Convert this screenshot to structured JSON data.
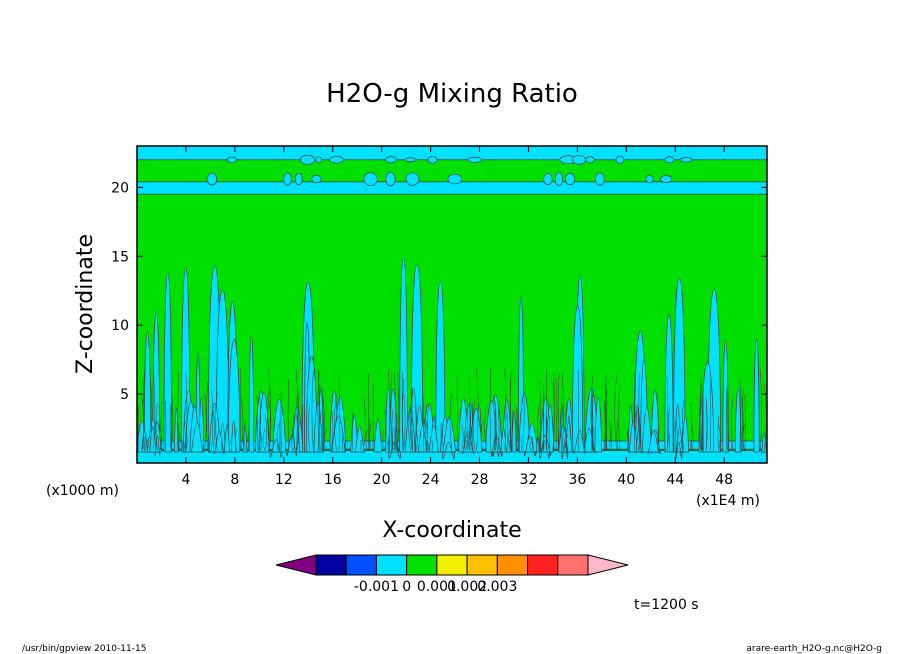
{
  "chart_data": {
    "type": "heatmap",
    "title": "H2O-g Mixing Ratio",
    "xlabel": "X-coordinate",
    "ylabel": "Z-coordinate",
    "x_unit_label": "(x1000 m)",
    "x_scale_label": "(x1E4 m)",
    "xlim": [
      0,
      51.5
    ],
    "ylim": [
      0,
      23
    ],
    "x_ticks": [
      4,
      8,
      12,
      16,
      20,
      24,
      28,
      32,
      36,
      40,
      44,
      48
    ],
    "y_ticks": [
      5,
      10,
      15,
      20
    ],
    "colorbar": {
      "colors": [
        "#800080",
        "#0000a0",
        "#0050ff",
        "#00e0ff",
        "#00e000",
        "#f0f000",
        "#ffc000",
        "#ff9000",
        "#ff2020",
        "#ff7070",
        "#ffb8c8"
      ],
      "tick_labels": [
        "-0.001",
        "0",
        "0.001",
        "0.002",
        "0.003"
      ]
    },
    "field_colors": {
      "background": "#00e000",
      "contour_fill": "#00e0ff",
      "contour_line": "#404040"
    },
    "time_label": "t=1200 s"
  },
  "footer": {
    "left": "/usr/bin/gpview  2010-11-15",
    "right": "arare-earth_H2O-g.nc@H2O-g"
  }
}
